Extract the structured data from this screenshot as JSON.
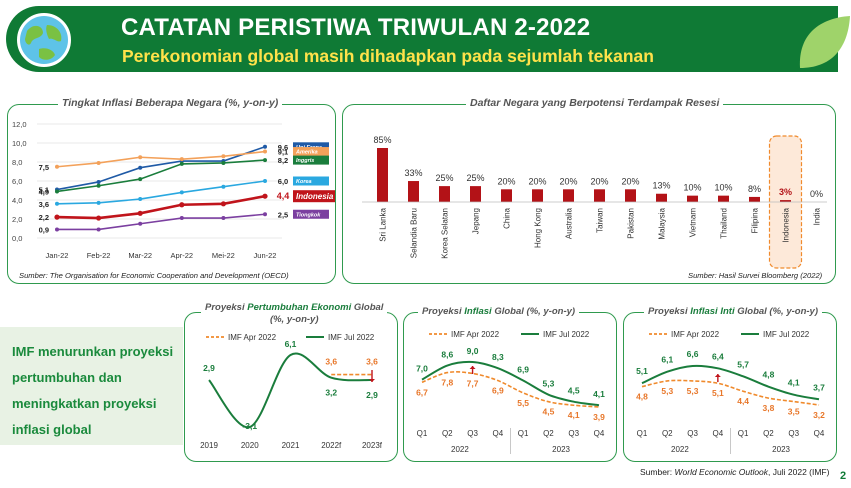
{
  "header": {
    "title": "CATATAN PERISTIWA TRIWULAN 2-2022",
    "subtitle": "Perekonomian global masih dihadapkan pada sejumlah tekanan"
  },
  "side_text": "IMF menurunkan proyeksi pertumbuhan dan meningkatkan proyeksi inflasi global",
  "footer": {
    "source_prefix": "Sumber: ",
    "source_italic": "World Economic Outlook",
    "source_suffix": ", Juli 2022 (IMF)",
    "page_number": "2"
  },
  "colors": {
    "brand_green": "#0f7a35",
    "yellow": "#ffe24a",
    "dark_red": "#b31217",
    "orange": "#f08a2c"
  },
  "panels": {
    "inflation": {
      "title": "Tingkat Inflasi Beberapa Negara (%, y-on-y)",
      "source": "Sumber: The Organisation for Economic Cooperation and Development (OECD)"
    },
    "recession": {
      "title": "Daftar Negara yang Berpotensi Terdampak Resesi",
      "source": "Sumber: Hasil Survei Bloomberg (2022)"
    },
    "growth": {
      "title_a": "Proyeksi ",
      "title_b": "Pertumbuhan Ekonomi",
      "title_c": " Global",
      "title_d": "(%, y-on-y)"
    },
    "inflation_proj": {
      "title_a": "Proyeksi ",
      "title_b": "Inflasi",
      "title_c": " Global (%, y-on-y)"
    },
    "core_proj": {
      "title_a": "Proyeksi ",
      "title_b": "Inflasi Inti",
      "title_c": " Global (%, y-on-y)"
    }
  },
  "chart_data": [
    {
      "type": "line",
      "title": "Tingkat Inflasi Beberapa Negara (%, y-on-y)",
      "x": [
        "Jan-22",
        "Feb-22",
        "Mar-22",
        "Apr-22",
        "Mei-22",
        "Jun-22"
      ],
      "ylim": [
        0,
        12
      ],
      "yticks": [
        "0,0",
        "2,0",
        "4,0",
        "6,0",
        "8,0",
        "10,0",
        "12,0"
      ],
      "series": [
        {
          "name": "Uni Eropa",
          "color": "#1f5aa6",
          "values": [
            5.1,
            5.9,
            7.4,
            8.1,
            8.1,
            9.6
          ],
          "start_label": "5,1",
          "end_label": "9,6"
        },
        {
          "name": "Amerika",
          "color": "#f3a15a",
          "values": [
            7.5,
            7.9,
            8.5,
            8.3,
            8.6,
            9.1
          ],
          "start_label": "7,5",
          "end_label": "9,1"
        },
        {
          "name": "Inggris",
          "color": "#1a7d3c",
          "values": [
            4.9,
            5.5,
            6.2,
            7.8,
            7.9,
            8.2
          ],
          "start_label": "4,9",
          "end_label": "8,2"
        },
        {
          "name": "Korea",
          "color": "#2aa8e0",
          "values": [
            3.6,
            3.7,
            4.1,
            4.8,
            5.4,
            6.0
          ],
          "start_label": "3,6",
          "end_label": "6,0"
        },
        {
          "name": "Indonesia",
          "color": "#c0141b",
          "values": [
            2.2,
            2.1,
            2.6,
            3.5,
            3.6,
            4.4
          ],
          "start_label": "2,2",
          "end_label": "4,4"
        },
        {
          "name": "Tiongkok",
          "color": "#7b3fa0",
          "values": [
            0.9,
            0.9,
            1.5,
            2.1,
            2.1,
            2.5
          ],
          "start_label": "0,9",
          "end_label": "2,5"
        }
      ],
      "legend": "right"
    },
    {
      "type": "bar",
      "title": "Daftar Negara yang Berpotensi Terdampak Resesi",
      "categories": [
        "Sri Lanka",
        "Selandia Baru",
        "Korea Selatan",
        "Jepang",
        "China",
        "Hong Kong",
        "Australia",
        "Taiwan",
        "Pakistan",
        "Malaysia",
        "Vietnam",
        "Thailand",
        "Filipina",
        "Indonesia",
        "India"
      ],
      "values": [
        85,
        33,
        25,
        25,
        20,
        20,
        20,
        20,
        20,
        13,
        10,
        10,
        8,
        3,
        0
      ],
      "labels": [
        "85%",
        "33%",
        "25%",
        "25%",
        "20%",
        "20%",
        "20%",
        "20%",
        "20%",
        "13%",
        "10%",
        "10%",
        "8%",
        "3%",
        "0%"
      ],
      "highlight": "Indonesia"
    },
    {
      "type": "line",
      "title": "Proyeksi Pertumbuhan Ekonomi Global (%, y-on-y)",
      "x": [
        "2019",
        "2020",
        "2021",
        "2022f",
        "2023f"
      ],
      "series": [
        {
          "name": "IMF Apr 2022",
          "values": [
            null,
            null,
            null,
            3.6,
            3.6
          ],
          "labels": [
            "",
            "",
            "",
            "3,6",
            "3,6"
          ]
        },
        {
          "name": "IMF Jul 2022",
          "values": [
            2.9,
            -3.1,
            6.1,
            3.2,
            2.9
          ],
          "labels": [
            "2,9",
            "-3,1",
            "6,1",
            "3,2",
            "2,9"
          ]
        }
      ]
    },
    {
      "type": "line",
      "title": "Proyeksi Inflasi Global (%, y-on-y)",
      "x": [
        "Q1",
        "Q2",
        "Q3",
        "Q4",
        "Q1",
        "Q2",
        "Q3",
        "Q4"
      ],
      "x_groups": [
        "2022",
        "2023"
      ],
      "series": [
        {
          "name": "IMF Apr 2022",
          "values": [
            6.7,
            7.8,
            7.7,
            6.9,
            5.5,
            4.5,
            4.1,
            3.9
          ],
          "labels": [
            "6,7",
            "7,8",
            "7,7",
            "6,9",
            "5,5",
            "4,5",
            "4,1",
            "3,9"
          ]
        },
        {
          "name": "IMF Jul 2022",
          "values": [
            7.0,
            8.6,
            9.0,
            8.3,
            6.9,
            5.3,
            4.5,
            4.1
          ],
          "labels": [
            "7,0",
            "8,6",
            "9,0",
            "8,3",
            "6,9",
            "5,3",
            "4,5",
            "4,1"
          ]
        }
      ]
    },
    {
      "type": "line",
      "title": "Proyeksi Inflasi Inti Global (%, y-on-y)",
      "x": [
        "Q1",
        "Q2",
        "Q3",
        "Q4",
        "Q1",
        "Q2",
        "Q3",
        "Q4"
      ],
      "x_groups": [
        "2022",
        "2023"
      ],
      "series": [
        {
          "name": "IMF Apr 2022",
          "values": [
            4.8,
            5.3,
            5.3,
            5.1,
            4.4,
            3.8,
            3.5,
            3.2
          ],
          "labels": [
            "4,8",
            "5,3",
            "5,3",
            "5,1",
            "4,4",
            "3,8",
            "3,5",
            "3,2"
          ]
        },
        {
          "name": "IMF Jul 2022",
          "values": [
            5.1,
            6.1,
            6.6,
            6.4,
            5.7,
            4.8,
            4.1,
            3.7
          ],
          "labels": [
            "5,1",
            "6,1",
            "6,6",
            "6,4",
            "5,7",
            "4,8",
            "4,1",
            "3,7"
          ]
        }
      ]
    }
  ]
}
